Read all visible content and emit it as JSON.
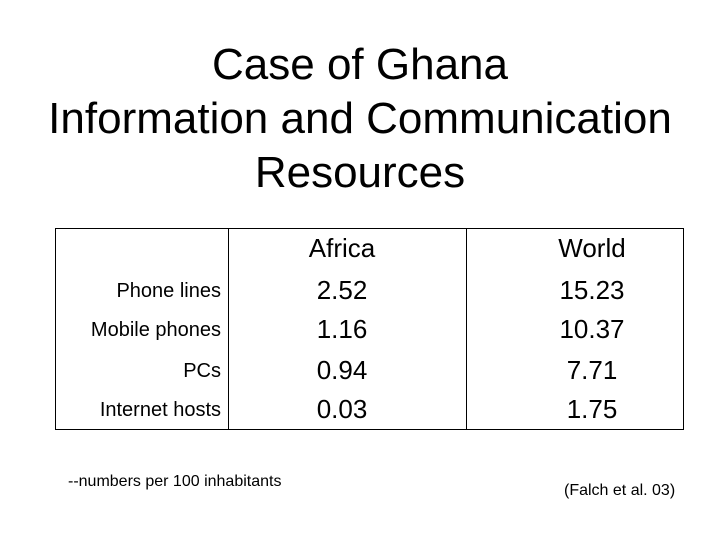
{
  "title": {
    "line1": "Case of Ghana",
    "line2": "Information and Communication",
    "line3": "Resources"
  },
  "table": {
    "columns": [
      "",
      "Africa",
      "World"
    ],
    "rows": [
      {
        "label": "Phone lines",
        "africa": "2.52",
        "world": "15.23"
      },
      {
        "label": "Mobile phones",
        "africa": "1.16",
        "world": "10.37"
      },
      {
        "label": "PCs",
        "africa": "0.94",
        "world": "7.71"
      },
      {
        "label": "Internet hosts",
        "africa": "0.03",
        "world": "1.75"
      }
    ]
  },
  "footnote": "--numbers per 100 inhabitants",
  "citation": "(Falch et al. 03)"
}
